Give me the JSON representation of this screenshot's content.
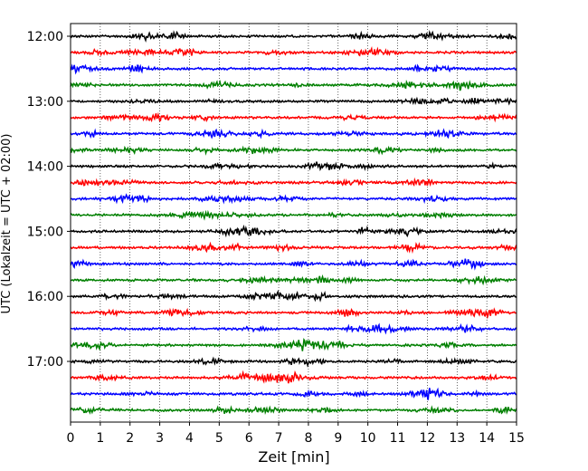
{
  "chart_data": {
    "type": "line",
    "title": "",
    "xlabel": "Zeit  [min]",
    "ylabel": "UTC (Lokalzeit = UTC + 02:00)",
    "xlim": [
      0,
      15
    ],
    "x_ticks": [
      "0",
      "1",
      "2",
      "3",
      "4",
      "5",
      "6",
      "7",
      "8",
      "9",
      "10",
      "11",
      "12",
      "13",
      "14",
      "15"
    ],
    "y_ticks": [
      "12:00",
      "13:00",
      "14:00",
      "15:00",
      "16:00",
      "17:00"
    ],
    "grid": "vertical dotted lines at each minute",
    "trace_colors": [
      "#000000",
      "#ff0000",
      "#0000ff",
      "#008000"
    ],
    "series": [
      {
        "start": "12:00",
        "color": "#000000"
      },
      {
        "start": "12:15",
        "color": "#ff0000"
      },
      {
        "start": "12:30",
        "color": "#0000ff"
      },
      {
        "start": "12:45",
        "color": "#008000"
      },
      {
        "start": "13:00",
        "color": "#000000"
      },
      {
        "start": "13:15",
        "color": "#ff0000"
      },
      {
        "start": "13:30",
        "color": "#0000ff"
      },
      {
        "start": "13:45",
        "color": "#008000"
      },
      {
        "start": "14:00",
        "color": "#000000"
      },
      {
        "start": "14:15",
        "color": "#ff0000"
      },
      {
        "start": "14:30",
        "color": "#0000ff"
      },
      {
        "start": "14:45",
        "color": "#008000"
      },
      {
        "start": "15:00",
        "color": "#000000"
      },
      {
        "start": "15:15",
        "color": "#ff0000"
      },
      {
        "start": "15:30",
        "color": "#0000ff"
      },
      {
        "start": "15:45",
        "color": "#008000"
      },
      {
        "start": "16:00",
        "color": "#000000"
      },
      {
        "start": "16:15",
        "color": "#ff0000"
      },
      {
        "start": "16:30",
        "color": "#0000ff"
      },
      {
        "start": "16:45",
        "color": "#008000"
      },
      {
        "start": "17:00",
        "color": "#000000"
      },
      {
        "start": "17:15",
        "color": "#ff0000"
      },
      {
        "start": "17:30",
        "color": "#0000ff"
      },
      {
        "start": "17:45",
        "color": "#008000"
      }
    ]
  }
}
